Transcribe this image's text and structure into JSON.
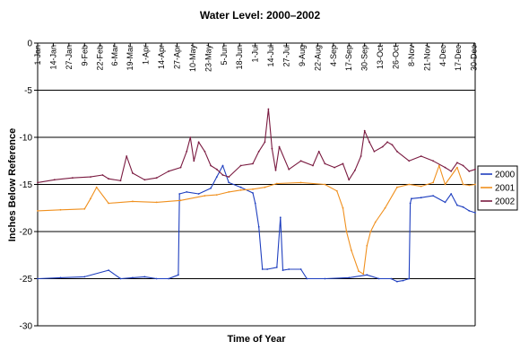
{
  "chart_data": {
    "type": "line",
    "title": "Water Level: 2000–2002",
    "xlabel": "Time of Year",
    "ylabel": "Inches Below Reference",
    "ylim": [
      -30,
      0
    ],
    "y_ticks": [
      0,
      -5,
      -10,
      -15,
      -20,
      -25,
      -30
    ],
    "xlim": [
      1,
      365
    ],
    "x_unit": "day of year",
    "x_ticks": [
      {
        "day": 1,
        "label": "1-Jan"
      },
      {
        "day": 14,
        "label": "14-Jan"
      },
      {
        "day": 27,
        "label": "27-Jan"
      },
      {
        "day": 40,
        "label": "9-Feb"
      },
      {
        "day": 53,
        "label": "22-Feb"
      },
      {
        "day": 65,
        "label": "6-Mar"
      },
      {
        "day": 78,
        "label": "19-Mar"
      },
      {
        "day": 91,
        "label": "1-Apr"
      },
      {
        "day": 104,
        "label": "14-Apr"
      },
      {
        "day": 117,
        "label": "27-Apr"
      },
      {
        "day": 130,
        "label": "10-May"
      },
      {
        "day": 143,
        "label": "23-May"
      },
      {
        "day": 156,
        "label": "5-Jun"
      },
      {
        "day": 169,
        "label": "18-Jun"
      },
      {
        "day": 182,
        "label": "1-Jul"
      },
      {
        "day": 195,
        "label": "14-Jul"
      },
      {
        "day": 208,
        "label": "27-Jul"
      },
      {
        "day": 221,
        "label": "9-Aug"
      },
      {
        "day": 234,
        "label": "22-Aug"
      },
      {
        "day": 247,
        "label": "4-Sep"
      },
      {
        "day": 260,
        "label": "17-Sep"
      },
      {
        "day": 273,
        "label": "30-Sep"
      },
      {
        "day": 286,
        "label": "13-Oct"
      },
      {
        "day": 299,
        "label": "26-Oct"
      },
      {
        "day": 312,
        "label": "8-Nov"
      },
      {
        "day": 325,
        "label": "21-Nov"
      },
      {
        "day": 338,
        "label": "4-Dec"
      },
      {
        "day": 351,
        "label": "17-Dec"
      },
      {
        "day": 364,
        "label": "30-Dec"
      }
    ],
    "grid": "horizontal",
    "legend_position": "right",
    "series": [
      {
        "name": "2000",
        "color": "#1f3fbf",
        "x": [
          1,
          20,
          40,
          60,
          70,
          80,
          90,
          100,
          110,
          118,
          119,
          125,
          135,
          145,
          150,
          155,
          160,
          170,
          180,
          182,
          185,
          188,
          192,
          200,
          203,
          205,
          210,
          220,
          225,
          240,
          260,
          275,
          285,
          295,
          300,
          305,
          310,
          311,
          312,
          320,
          330,
          340,
          345,
          350,
          355,
          360,
          365
        ],
        "values": [
          -25,
          -24.9,
          -24.8,
          -24.1,
          -25,
          -24.9,
          -24.8,
          -25,
          -25,
          -24.6,
          -16,
          -15.8,
          -16.0,
          -15.4,
          -14.2,
          -13,
          -14.8,
          -15.3,
          -15.9,
          -17,
          -19.5,
          -24,
          -24.0,
          -23.8,
          -18.5,
          -24.1,
          -24.0,
          -24.0,
          -25,
          -25,
          -24.9,
          -24.6,
          -25,
          -25,
          -25.3,
          -25.2,
          -25,
          -17,
          -16.5,
          -16.4,
          -16.2,
          -16.9,
          -16,
          -17.2,
          -17.4,
          -17.8,
          -18
        ]
      },
      {
        "name": "2001",
        "color": "#f0901e",
        "x": [
          1,
          20,
          40,
          45,
          50,
          60,
          80,
          100,
          120,
          140,
          150,
          160,
          170,
          180,
          190,
          200,
          220,
          240,
          250,
          255,
          258,
          262,
          268,
          272,
          275,
          278,
          282,
          290,
          300,
          310,
          320,
          330,
          335,
          340,
          350,
          355,
          360,
          365
        ],
        "values": [
          -17.8,
          -17.7,
          -17.6,
          -16.5,
          -15.3,
          -17,
          -16.8,
          -16.9,
          -16.7,
          -16.2,
          -16.1,
          -15.8,
          -15.6,
          -15.5,
          -15.3,
          -14.9,
          -14.8,
          -15,
          -15.7,
          -17.5,
          -20,
          -22,
          -24.2,
          -24.5,
          -21.5,
          -20,
          -19,
          -17.5,
          -15.3,
          -15,
          -15.2,
          -14.8,
          -13,
          -15,
          -13.2,
          -15,
          -15.1,
          -15
        ]
      },
      {
        "name": "2002",
        "color": "#7a1a40",
        "x": [
          1,
          15,
          30,
          45,
          55,
          60,
          70,
          75,
          80,
          90,
          100,
          110,
          120,
          125,
          128,
          131,
          135,
          140,
          145,
          150,
          155,
          160,
          170,
          180,
          185,
          190,
          193,
          196,
          199,
          202,
          210,
          220,
          230,
          235,
          240,
          248,
          255,
          260,
          265,
          270,
          273,
          277,
          281,
          288,
          292,
          296,
          300,
          310,
          320,
          330,
          340,
          345,
          350,
          355,
          360,
          365
        ],
        "values": [
          -14.8,
          -14.5,
          -14.3,
          -14.2,
          -14.0,
          -14.4,
          -14.6,
          -12.0,
          -13.8,
          -14.5,
          -14.3,
          -13.6,
          -13.2,
          -11.5,
          -10.0,
          -12.5,
          -10.5,
          -11.5,
          -13.0,
          -13.4,
          -14.0,
          -14.2,
          -13.0,
          -12.8,
          -11.5,
          -10.5,
          -7.0,
          -11.2,
          -13.5,
          -11.0,
          -13.4,
          -12.5,
          -13.0,
          -11.5,
          -12.8,
          -13.2,
          -12.8,
          -14.5,
          -13.5,
          -12.0,
          -9.3,
          -10.5,
          -11.5,
          -11.0,
          -10.5,
          -10.8,
          -11.5,
          -12.5,
          -12.0,
          -12.5,
          -13.2,
          -13.6,
          -12.7,
          -13.0,
          -13.6,
          -13.4
        ]
      }
    ]
  }
}
